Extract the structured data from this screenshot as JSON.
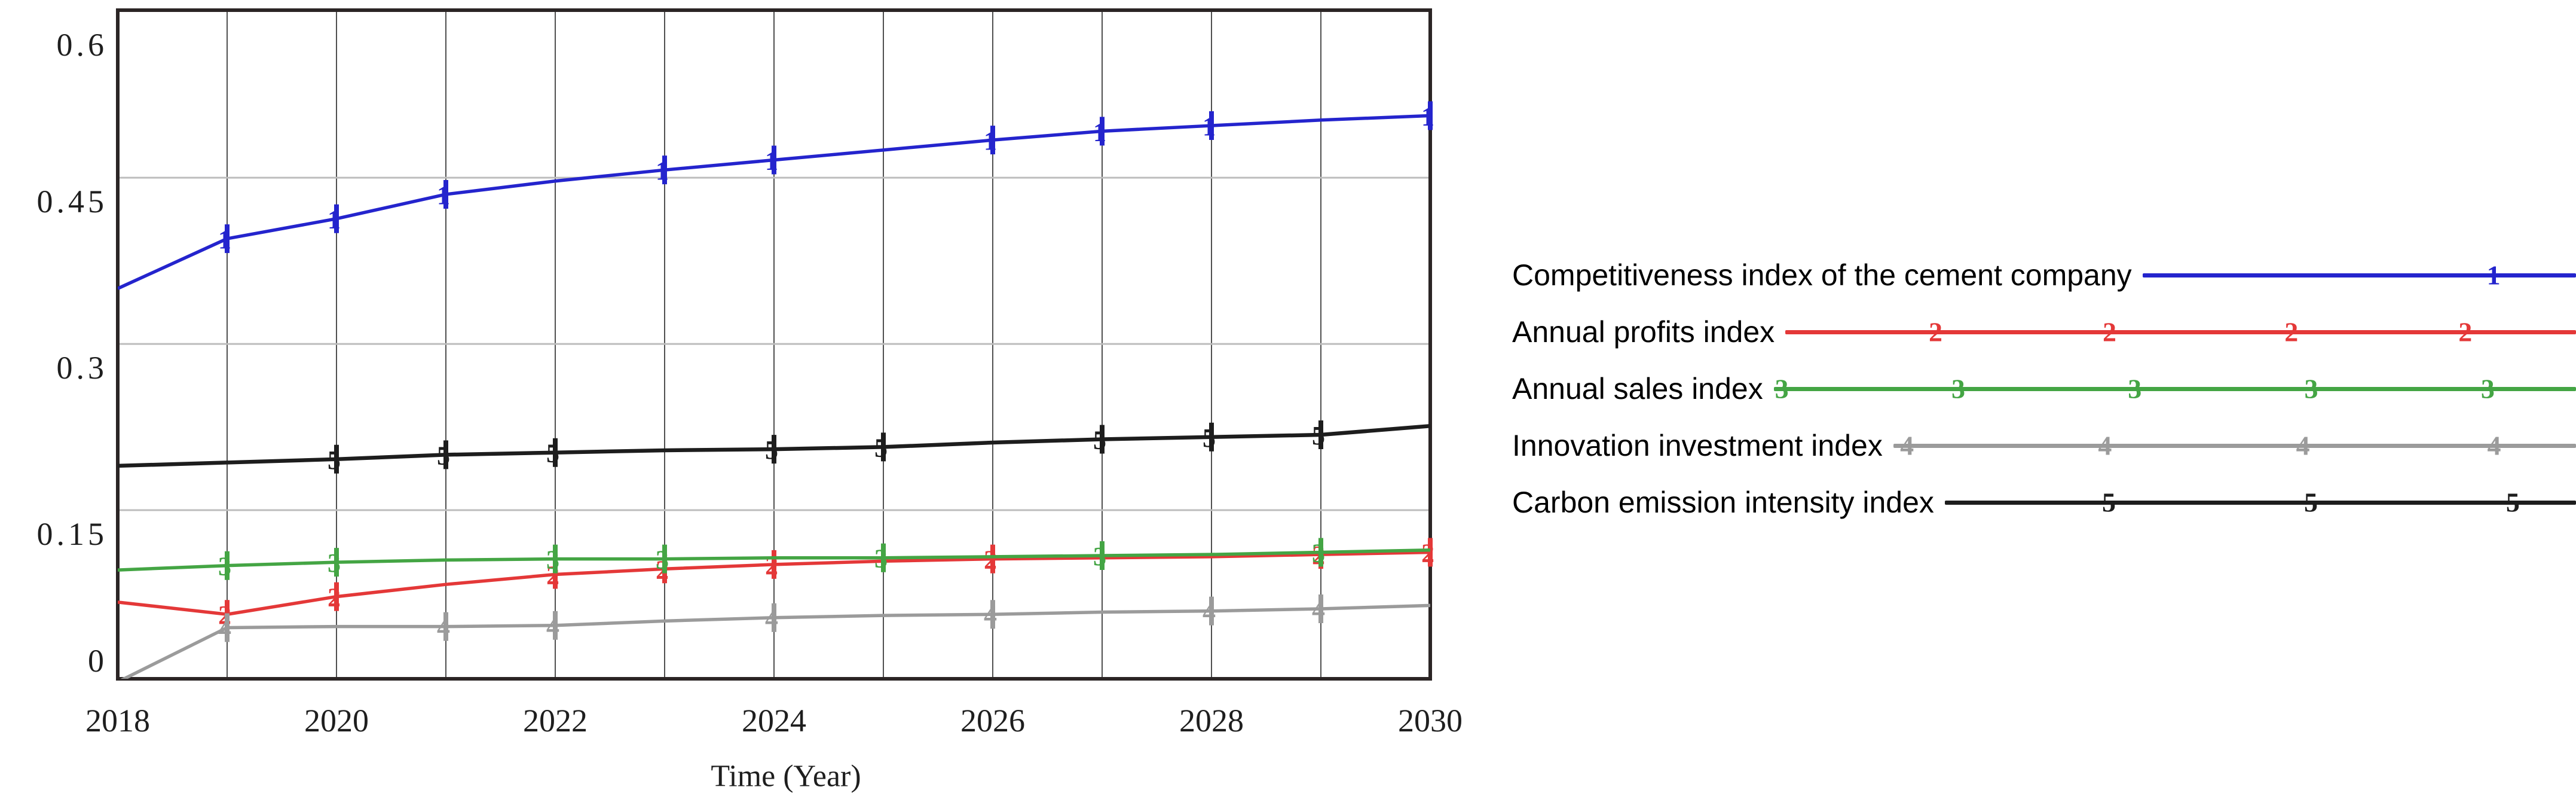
{
  "chart_data": {
    "type": "line",
    "title": "",
    "xlabel": "Time (Year)",
    "ylabel": "",
    "x": [
      2018,
      2019,
      2020,
      2021,
      2022,
      2023,
      2024,
      2025,
      2026,
      2027,
      2028,
      2029,
      2030
    ],
    "xlim": [
      2018,
      2030
    ],
    "ylim": [
      0,
      0.6
    ],
    "y_ticks": [
      0,
      0.15,
      0.3,
      0.45,
      0.6
    ],
    "y_tick_labels": [
      "0",
      "0.15",
      "0.3",
      "0.45",
      "0.6"
    ],
    "x_ticks_labeled": [
      2018,
      2020,
      2022,
      2024,
      2026,
      2028,
      2030
    ],
    "grid": "vertical line at every year; light horizontal line at every y tick",
    "legend_position": "right of plot, outside, each entry followed by a sample line with numeral markers",
    "series": [
      {
        "name": "Competitiveness index of the cement company",
        "marker": "1",
        "color": "#2424cd",
        "values": [
          0.35,
          0.395,
          0.413,
          0.435,
          0.447,
          0.457,
          0.466,
          0.475,
          0.484,
          0.492,
          0.497,
          0.502,
          0.506
        ],
        "marker_years": [
          2019,
          2020,
          2021,
          2023,
          2024,
          2026,
          2027,
          2028,
          2030
        ],
        "legend_marker_positions_pct": [
          81
        ]
      },
      {
        "name": "Annual profits index",
        "marker": "2",
        "color": "#e43838",
        "values": [
          0.067,
          0.056,
          0.072,
          0.083,
          0.092,
          0.097,
          0.101,
          0.104,
          0.106,
          0.107,
          0.108,
          0.11,
          0.112
        ],
        "marker_years": [
          2019,
          2020,
          2022,
          2023,
          2024,
          2026,
          2029,
          2030
        ],
        "legend_marker_positions_pct": [
          19,
          41,
          64,
          86
        ]
      },
      {
        "name": "Annual sales index",
        "marker": "3",
        "color": "#44a544",
        "values": [
          0.096,
          0.1,
          0.103,
          0.105,
          0.106,
          0.106,
          0.107,
          0.107,
          0.108,
          0.109,
          0.11,
          0.112,
          0.114
        ],
        "marker_years": [
          2019,
          2020,
          2022,
          2023,
          2025,
          2027,
          2029
        ],
        "legend_marker_positions_pct": [
          1,
          23,
          45,
          67,
          89
        ]
      },
      {
        "name": "Innovation investment index",
        "marker": "4",
        "color": "#9b9b9b",
        "values": [
          -0.005,
          0.044,
          0.045,
          0.045,
          0.046,
          0.05,
          0.053,
          0.055,
          0.056,
          0.058,
          0.059,
          0.061,
          0.064
        ],
        "marker_years": [
          2019,
          2021,
          2022,
          2024,
          2026,
          2028,
          2029
        ],
        "legend_marker_positions_pct": [
          2,
          31,
          60,
          88
        ]
      },
      {
        "name": "Carbon emission intensity index",
        "marker": "5",
        "color": "#1d1d1d",
        "values": [
          0.19,
          0.193,
          0.196,
          0.2,
          0.202,
          0.204,
          0.205,
          0.207,
          0.211,
          0.214,
          0.216,
          0.218,
          0.226
        ],
        "marker_years": [
          2020,
          2021,
          2022,
          2024,
          2025,
          2027,
          2028,
          2029
        ],
        "legend_marker_positions_pct": [
          26,
          58,
          90
        ]
      }
    ]
  },
  "style_colors": {
    "plot_border": "#2b2525",
    "vertical_grid": "#4f4f4f",
    "horizontal_grid": "#bdbdbd",
    "axis_text": "#1e1e1e"
  }
}
